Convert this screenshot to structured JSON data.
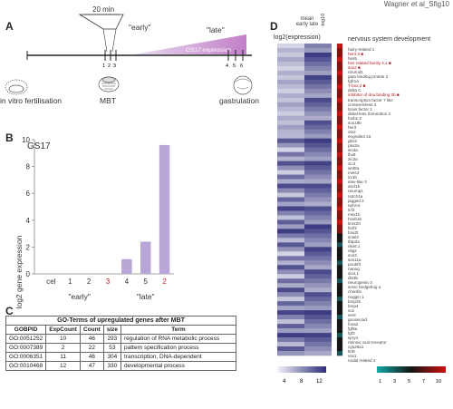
{
  "corner_label": "Wagner et al_Sfig10",
  "panel_a": {
    "label": "A",
    "interval": "20 min",
    "early": "\"early\"",
    "late": "\"late\"",
    "gradient_label": "GS17 expression",
    "ticks_early": [
      "1",
      "2",
      "3"
    ],
    "ticks_late": [
      "4",
      "5",
      "6"
    ],
    "stage_left": "in vitro fertilisation",
    "stage_mid": "MBT",
    "stage_right": "gastrulation"
  },
  "panel_b": {
    "label": "B",
    "legend": "GS17",
    "color_bar": "#b8a6d6",
    "color_red": "#cc2222"
  },
  "chart_data": {
    "type": "bar",
    "categories": [
      "cel",
      "1",
      "2",
      "3",
      "4",
      "5",
      "2"
    ],
    "values": [
      0,
      0,
      0,
      0,
      1.1,
      2.4,
      9.6
    ],
    "ylabel": "log2 gene expression",
    "ylim": [
      0,
      10
    ],
    "yticks": [
      "0",
      "2",
      "4",
      "6",
      "8",
      "10"
    ],
    "group_labels": [
      "\"early\"",
      "\"late\""
    ],
    "red_categories": [
      3,
      6
    ]
  },
  "panel_c": {
    "label": "C",
    "title": "GO-Terms of upregulated genes after MBT",
    "headers": [
      "GOBPID",
      "ExpCount",
      "Count",
      "size",
      "Term"
    ],
    "rows": [
      [
        "GO:0051252",
        "10",
        "46",
        "293",
        "regulation of RNA metabolic process"
      ],
      [
        "GO:0007389",
        "2",
        "22",
        "53",
        "pattern specification process"
      ],
      [
        "GO:0006351",
        "11",
        "46",
        "304",
        "transcription, DNA-dependent"
      ],
      [
        "GO:0010468",
        "12",
        "47",
        "330",
        "developmental process"
      ]
    ]
  },
  "panel_d": {
    "label": "D",
    "col_header_1": "mean",
    "col_header_2": "early   late",
    "expr_header": "log2(expression)",
    "signif_header": "-log10",
    "category_header": "nervous system development",
    "expr_scale": [
      "4",
      "8",
      "12"
    ],
    "signif_scale": [
      "1",
      "3",
      "5",
      "7",
      "10"
    ],
    "gene_lines": [
      "hairy-related 1",
      "her4.3 ■",
      "hes5",
      "hes related family 4.1 ■",
      "sox2 ■",
      "neurod1",
      "gata binding protein 2",
      "fgfr1a",
      "T-box 2 ■",
      "delta C",
      "inhibitor of dna binding 2b ■",
      "transcription factor 7 like",
      "crossveinless 2",
      "brain factor 1",
      "distal-less homeobox 2",
      "foxb1.2",
      "sox19b",
      "her3",
      "otx2",
      "engrailed 2a",
      "gbx2",
      "pax2a",
      "six3a",
      "lhx5",
      "zic2a",
      "zic3",
      "wnt8a",
      "meis3",
      "irx1b",
      "elav-like 3",
      "ascl1b",
      "neurog1",
      "notch1a",
      "jagged 2",
      "ephA4",
      "tcf3",
      "msx1b",
      "hoxb1b",
      "krox20",
      "fezf2",
      "foxd3",
      "snail2",
      "tfap2a",
      "nkx6.1",
      "olig2",
      "sox3",
      "sox11a",
      "pou5f3",
      "nanog",
      "six4.1",
      "dlx3b",
      "neurogenin 3",
      "sonic hedgehog a",
      "chordin",
      "noggin 1",
      "bmp2b",
      "bmp4",
      "vox",
      "vent",
      "goosecoid",
      "foxa2",
      "fgf8a",
      "fgf3",
      "spry4",
      "retinoic acid receptor",
      "cyp26a1",
      "krt8",
      "vsx1",
      "nodal related 2"
    ]
  }
}
